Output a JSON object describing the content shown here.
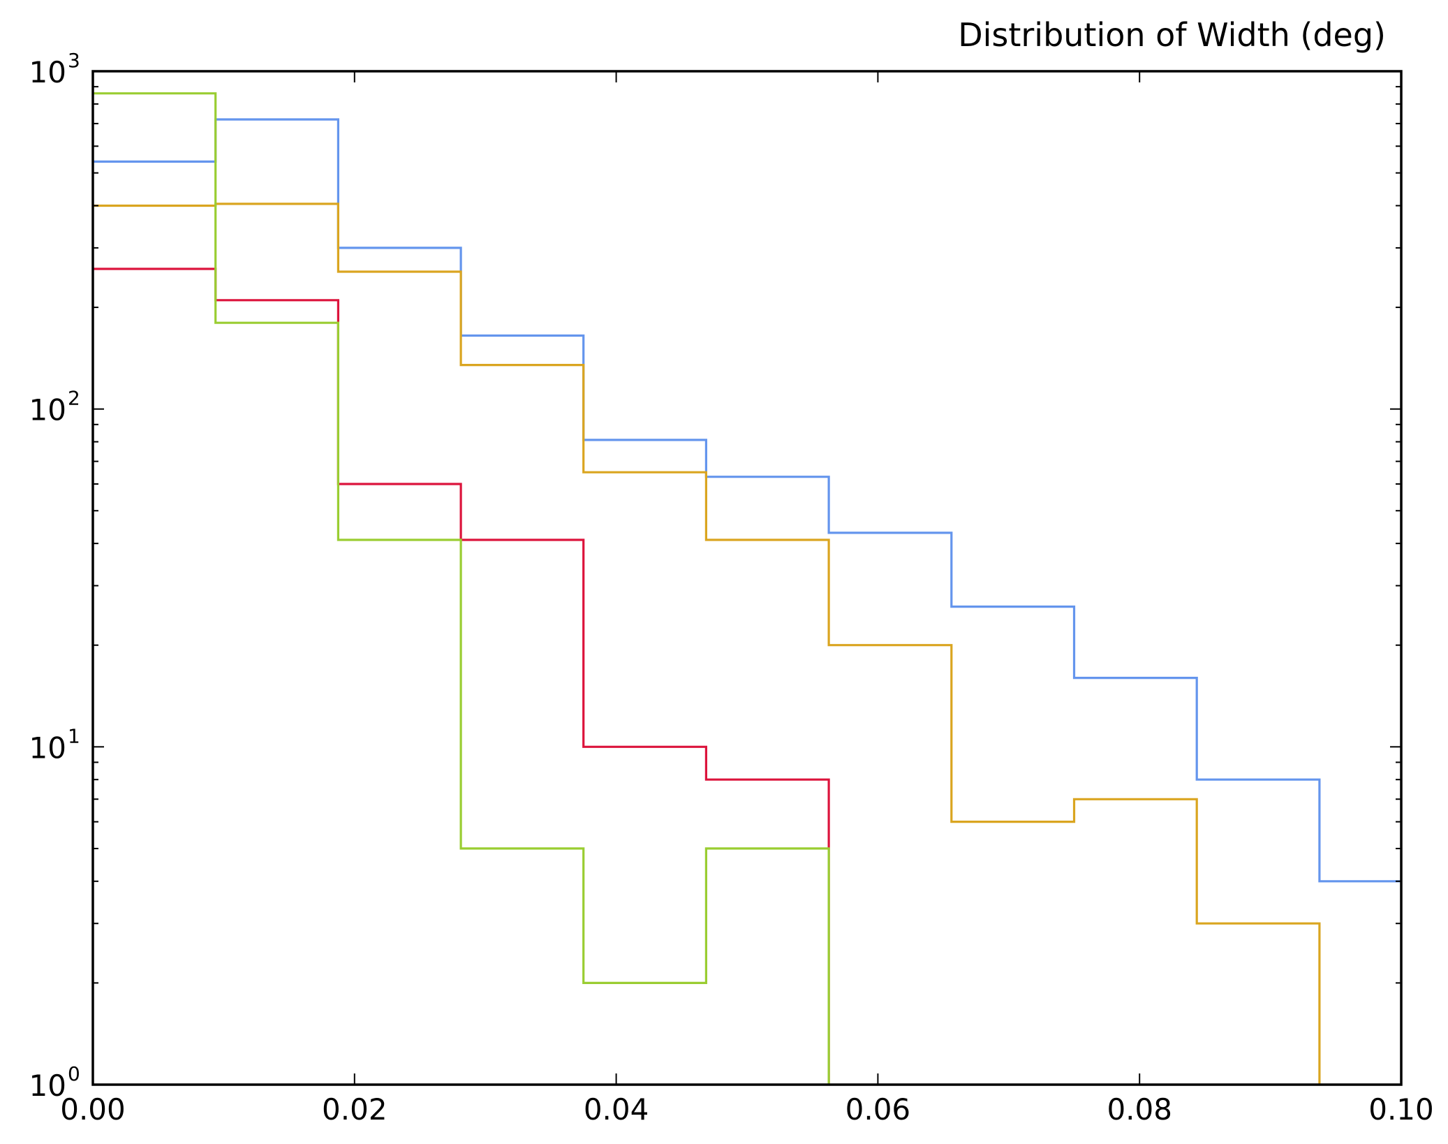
{
  "chart_data": {
    "type": "step-histogram",
    "title": "Distribution of Width (deg)",
    "xlabel": "",
    "ylabel": "",
    "xlim": [
      0,
      0.1
    ],
    "ylim": [
      1,
      1000
    ],
    "yscale": "log",
    "grid": false,
    "x_ticks": [
      "0.00",
      "0.02",
      "0.04",
      "0.06",
      "0.08",
      "0.10"
    ],
    "y_ticks": [
      {
        "base": "10",
        "exp": "0"
      },
      {
        "base": "10",
        "exp": "1"
      },
      {
        "base": "10",
        "exp": "2"
      },
      {
        "base": "10",
        "exp": "3"
      }
    ],
    "bin_edges": [
      0,
      0.009375,
      0.01875,
      0.028125,
      0.0375,
      0.046875,
      0.05625,
      0.065625,
      0.075,
      0.084375,
      0.09375,
      0.103125
    ],
    "series": [
      {
        "color": "#6495ED",
        "values": [
          540,
          720,
          300,
          165,
          81,
          63,
          43,
          26,
          16,
          8,
          4
        ]
      },
      {
        "color": "#DAA520",
        "values": [
          400,
          405,
          255,
          135,
          65,
          41,
          20,
          6,
          7,
          3,
          0
        ]
      },
      {
        "color": "#DC143C",
        "values": [
          260,
          210,
          60,
          41,
          10,
          8,
          0,
          0,
          0,
          0,
          0
        ]
      },
      {
        "color": "#9ACD32",
        "values": [
          860,
          180,
          41,
          5,
          2,
          5,
          0,
          0,
          0,
          0,
          0
        ]
      }
    ]
  }
}
